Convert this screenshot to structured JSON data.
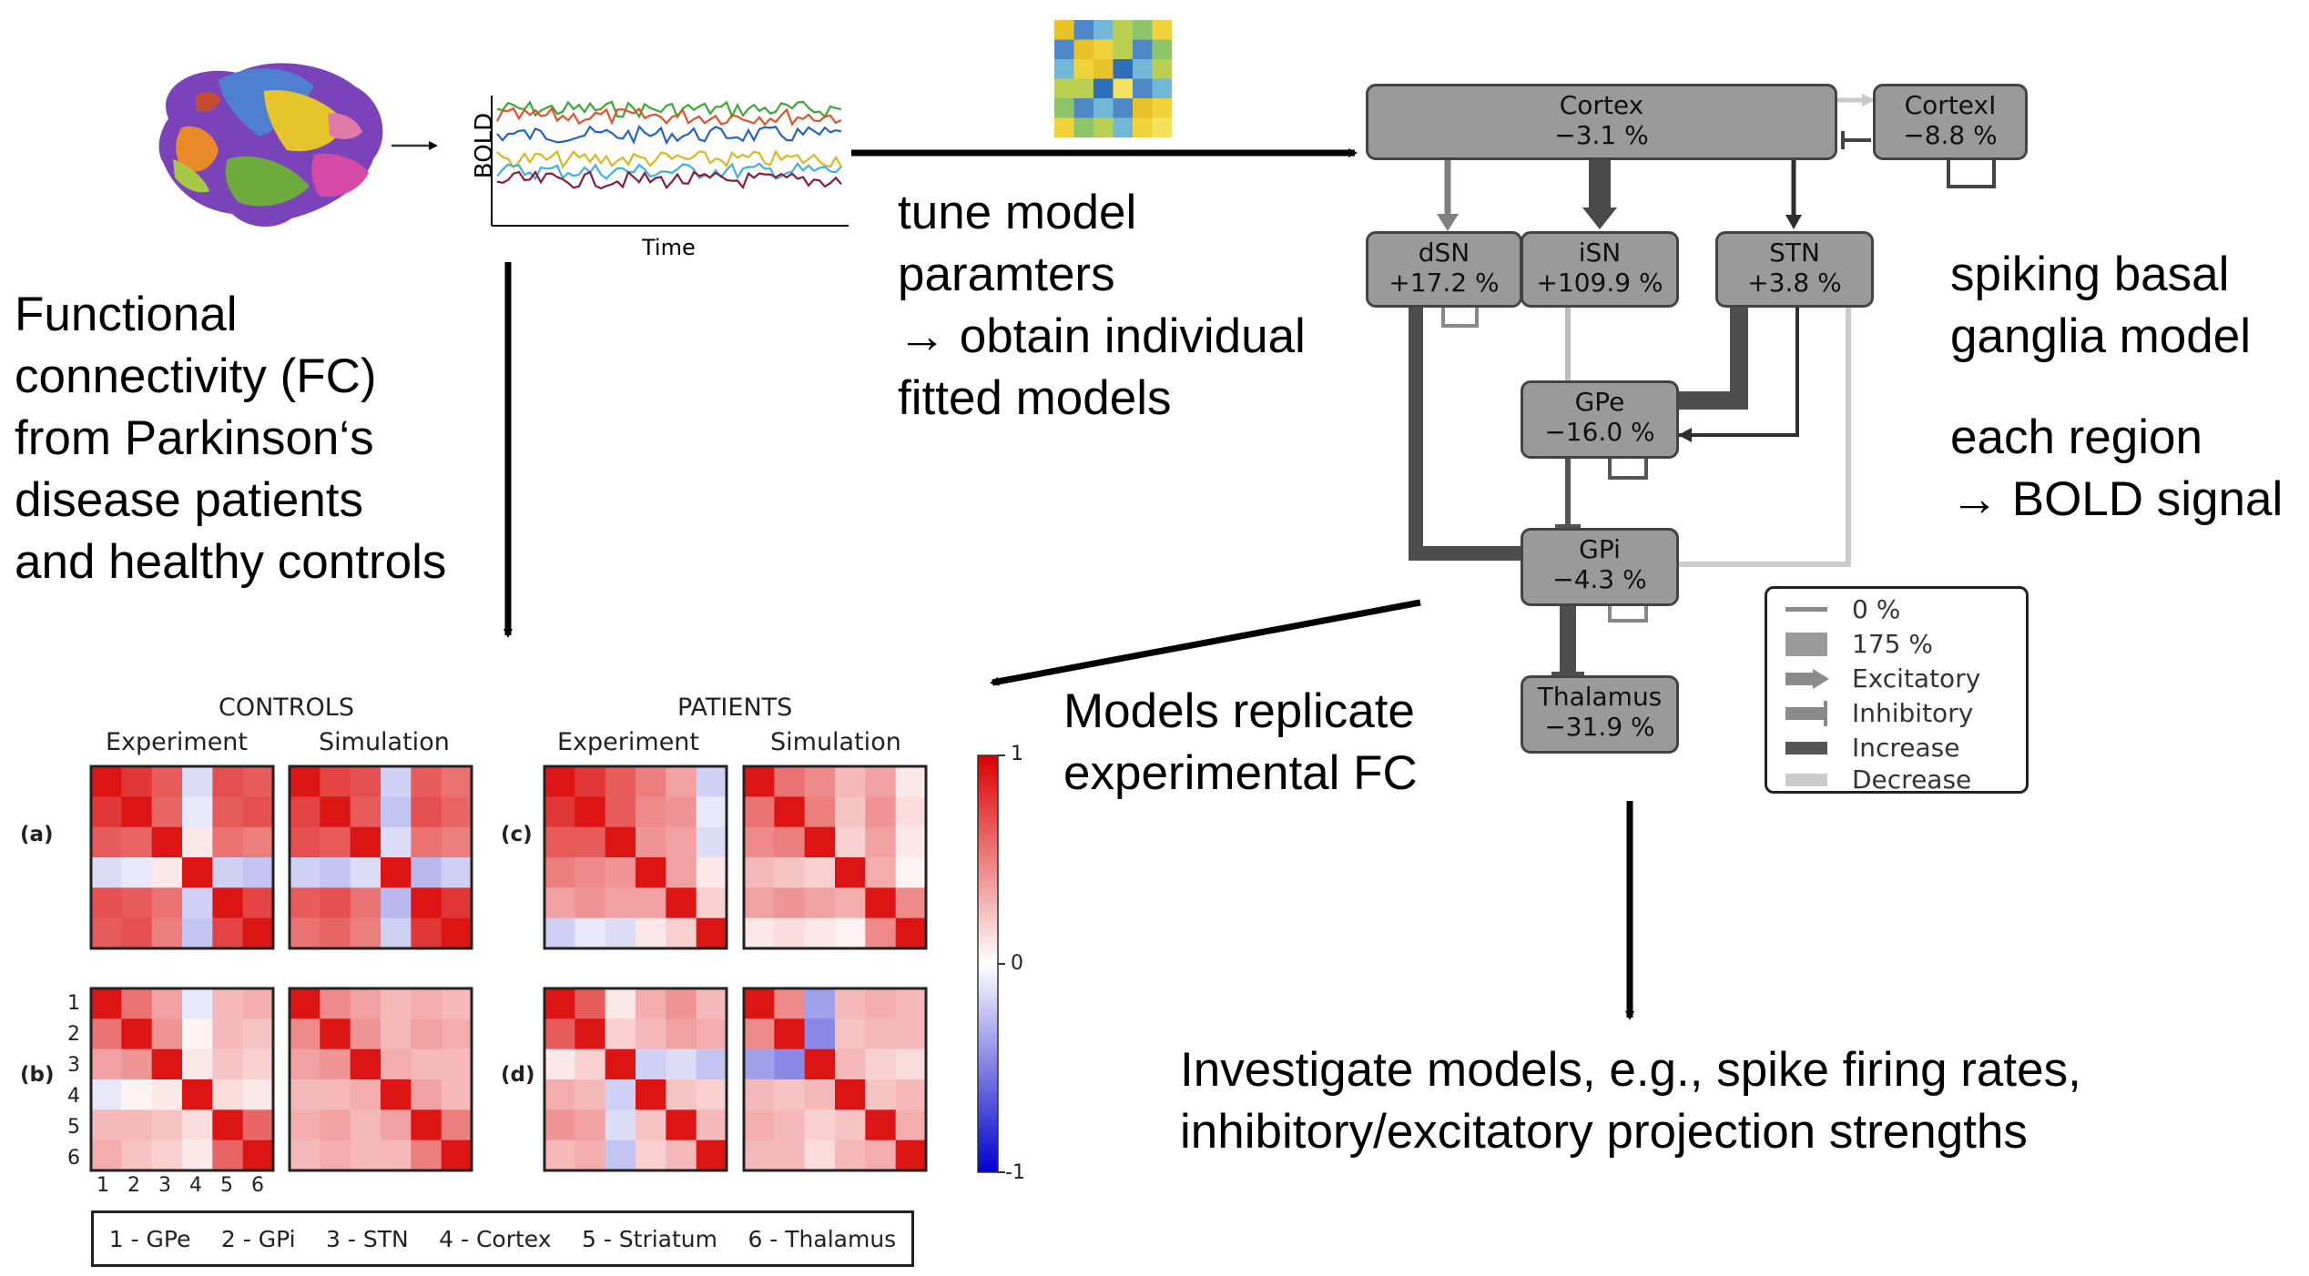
{
  "left_text": {
    "lines": [
      "Functional",
      "connectivity (FC)",
      "from Parkinson‘s",
      "disease patients",
      "and healthy controls"
    ]
  },
  "tune_text": {
    "lines": [
      "tune model",
      "paramters",
      "→ obtain individual",
      "fitted models"
    ]
  },
  "model_text": {
    "lines": [
      "spiking basal",
      "ganglia model"
    ]
  },
  "region_text": {
    "lines": [
      "each region",
      "→ BOLD signal"
    ]
  },
  "replicate_text": {
    "lines": [
      "Models replicate",
      "experimental  FC"
    ]
  },
  "investigate_text": {
    "lines": [
      "Investigate models, e.g., spike firing rates,",
      "inhibitory/excitatory projection strengths"
    ]
  },
  "timeseries": {
    "ylabel": "BOLD",
    "xlabel": "Time",
    "series_colors": [
      "#3aa832",
      "#1f62c8",
      "#e5502a",
      "#e0b41c",
      "#3ab0e6",
      "#8c1a3c"
    ]
  },
  "network": {
    "nodes": [
      {
        "id": "cortex",
        "name": "Cortex",
        "value": "−3.1 %"
      },
      {
        "id": "cortexi",
        "name": "CortexI",
        "value": "−8.8 %"
      },
      {
        "id": "dsn",
        "name": "dSN",
        "value": "+17.2 %"
      },
      {
        "id": "isn",
        "name": "iSN",
        "value": "+109.9 %"
      },
      {
        "id": "stn",
        "name": "STN",
        "value": "+3.8 %"
      },
      {
        "id": "gpe",
        "name": "GPe",
        "value": "−16.0 %"
      },
      {
        "id": "gpi",
        "name": "GPi",
        "value": "−4.3 %"
      },
      {
        "id": "thalamus",
        "name": "Thalamus",
        "value": "−31.9 %"
      }
    ],
    "legend": [
      "0 %",
      "175 %",
      "Excitatory",
      "Inhibitory",
      "Increase",
      "Decrease"
    ],
    "colors": {
      "node_fill": "#9a9a9a",
      "increase": "#555555",
      "decrease": "#cccccc",
      "neutral": "#8a8a8a"
    }
  },
  "fc_figure": {
    "group_titles": [
      "CONTROLS",
      "PATIENTS"
    ],
    "column_titles": [
      "Experiment",
      "Simulation",
      "Experiment",
      "Simulation"
    ],
    "panel_labels": [
      "(a)",
      "(b)",
      "(c)",
      "(d)"
    ],
    "axis_ticks": [
      "1",
      "2",
      "3",
      "4",
      "5",
      "6"
    ],
    "colorbar_ticks": [
      "1",
      "0",
      "-1"
    ],
    "key": [
      "1 - GPe",
      "2 - GPi",
      "3 - STN",
      "4 - Cortex",
      "5 - Striatum",
      "6 - Thalamus"
    ]
  },
  "chart_data": [
    {
      "type": "heatmap",
      "title": "CONTROLS Experiment (a)",
      "vmin": -1,
      "vmax": 1,
      "x": [
        "1",
        "2",
        "3",
        "4",
        "5",
        "6"
      ],
      "y": [
        "1",
        "2",
        "3",
        "4",
        "5",
        "6"
      ],
      "values": [
        [
          1,
          0.85,
          0.7,
          -0.15,
          0.75,
          0.7
        ],
        [
          0.85,
          1,
          0.65,
          -0.1,
          0.7,
          0.75
        ],
        [
          0.7,
          0.65,
          1,
          0.1,
          0.6,
          0.55
        ],
        [
          -0.15,
          -0.1,
          0.1,
          1,
          -0.2,
          -0.25
        ],
        [
          0.75,
          0.7,
          0.6,
          -0.2,
          1,
          0.8
        ],
        [
          0.7,
          0.75,
          0.55,
          -0.25,
          0.8,
          1
        ]
      ]
    },
    {
      "type": "heatmap",
      "title": "CONTROLS Simulation (a)",
      "vmin": -1,
      "vmax": 1,
      "x": [
        "1",
        "2",
        "3",
        "4",
        "5",
        "6"
      ],
      "y": [
        "1",
        "2",
        "3",
        "4",
        "5",
        "6"
      ],
      "values": [
        [
          1,
          0.8,
          0.75,
          -0.2,
          0.7,
          0.6
        ],
        [
          0.8,
          1,
          0.7,
          -0.25,
          0.75,
          0.65
        ],
        [
          0.75,
          0.7,
          1,
          -0.15,
          0.6,
          0.55
        ],
        [
          -0.2,
          -0.25,
          -0.15,
          1,
          -0.3,
          -0.2
        ],
        [
          0.7,
          0.75,
          0.6,
          -0.3,
          1,
          0.85
        ],
        [
          0.6,
          0.65,
          0.55,
          -0.2,
          0.85,
          1
        ]
      ]
    },
    {
      "type": "heatmap",
      "title": "CONTROLS Experiment (b)",
      "vmin": -1,
      "vmax": 1,
      "x": [
        "1",
        "2",
        "3",
        "4",
        "5",
        "6"
      ],
      "y": [
        "1",
        "2",
        "3",
        "4",
        "5",
        "6"
      ],
      "values": [
        [
          1,
          0.6,
          0.4,
          -0.1,
          0.3,
          0.35
        ],
        [
          0.6,
          1,
          0.45,
          0.05,
          0.3,
          0.25
        ],
        [
          0.4,
          0.45,
          1,
          0.1,
          0.25,
          0.2
        ],
        [
          -0.1,
          0.05,
          0.1,
          1,
          0.15,
          0.1
        ],
        [
          0.3,
          0.3,
          0.25,
          0.15,
          1,
          0.65
        ],
        [
          0.35,
          0.25,
          0.2,
          0.1,
          0.65,
          1
        ]
      ]
    },
    {
      "type": "heatmap",
      "title": "CONTROLS Simulation (b)",
      "vmin": -1,
      "vmax": 1,
      "x": [
        "1",
        "2",
        "3",
        "4",
        "5",
        "6"
      ],
      "y": [
        "1",
        "2",
        "3",
        "4",
        "5",
        "6"
      ],
      "values": [
        [
          1,
          0.5,
          0.4,
          0.3,
          0.35,
          0.3
        ],
        [
          0.5,
          1,
          0.45,
          0.3,
          0.4,
          0.35
        ],
        [
          0.4,
          0.45,
          1,
          0.35,
          0.3,
          0.3
        ],
        [
          0.3,
          0.3,
          0.35,
          1,
          0.4,
          0.3
        ],
        [
          0.35,
          0.4,
          0.3,
          0.4,
          1,
          0.55
        ],
        [
          0.3,
          0.35,
          0.3,
          0.3,
          0.55,
          1
        ]
      ]
    },
    {
      "type": "heatmap",
      "title": "PATIENTS Experiment (c)",
      "vmin": -1,
      "vmax": 1,
      "x": [
        "1",
        "2",
        "3",
        "4",
        "5",
        "6"
      ],
      "y": [
        "1",
        "2",
        "3",
        "4",
        "5",
        "6"
      ],
      "values": [
        [
          1,
          0.85,
          0.7,
          0.55,
          0.4,
          -0.2
        ],
        [
          0.85,
          1,
          0.7,
          0.5,
          0.45,
          -0.1
        ],
        [
          0.7,
          0.7,
          1,
          0.45,
          0.4,
          -0.15
        ],
        [
          0.55,
          0.5,
          0.45,
          1,
          0.4,
          0.1
        ],
        [
          0.4,
          0.45,
          0.4,
          0.4,
          1,
          0.2
        ],
        [
          -0.2,
          -0.1,
          -0.15,
          0.1,
          0.2,
          1
        ]
      ]
    },
    {
      "type": "heatmap",
      "title": "PATIENTS Simulation (c)",
      "vmin": -1,
      "vmax": 1,
      "x": [
        "1",
        "2",
        "3",
        "4",
        "5",
        "6"
      ],
      "y": [
        "1",
        "2",
        "3",
        "4",
        "5",
        "6"
      ],
      "values": [
        [
          1,
          0.6,
          0.5,
          0.3,
          0.4,
          0.1
        ],
        [
          0.6,
          1,
          0.55,
          0.25,
          0.45,
          0.15
        ],
        [
          0.5,
          0.55,
          1,
          0.2,
          0.4,
          0.1
        ],
        [
          0.3,
          0.25,
          0.2,
          1,
          0.35,
          0.05
        ],
        [
          0.4,
          0.45,
          0.4,
          0.35,
          1,
          0.5
        ],
        [
          0.1,
          0.15,
          0.1,
          0.05,
          0.5,
          1
        ]
      ]
    },
    {
      "type": "heatmap",
      "title": "PATIENTS Experiment (d)",
      "vmin": -1,
      "vmax": 1,
      "x": [
        "1",
        "2",
        "3",
        "4",
        "5",
        "6"
      ],
      "y": [
        "1",
        "2",
        "3",
        "4",
        "5",
        "6"
      ],
      "values": [
        [
          1,
          0.7,
          0.1,
          0.35,
          0.45,
          0.3
        ],
        [
          0.7,
          1,
          0.2,
          0.3,
          0.4,
          0.35
        ],
        [
          0.1,
          0.2,
          1,
          -0.2,
          -0.15,
          -0.25
        ],
        [
          0.35,
          0.3,
          -0.2,
          1,
          0.25,
          0.2
        ],
        [
          0.45,
          0.4,
          -0.15,
          0.25,
          1,
          0.3
        ],
        [
          0.3,
          0.35,
          -0.25,
          0.2,
          0.3,
          1
        ]
      ]
    },
    {
      "type": "heatmap",
      "title": "PATIENTS Simulation (d)",
      "vmin": -1,
      "vmax": 1,
      "x": [
        "1",
        "2",
        "3",
        "4",
        "5",
        "6"
      ],
      "y": [
        "1",
        "2",
        "3",
        "4",
        "5",
        "6"
      ],
      "values": [
        [
          1,
          0.5,
          -0.4,
          0.3,
          0.35,
          0.3
        ],
        [
          0.5,
          1,
          -0.5,
          0.25,
          0.3,
          0.3
        ],
        [
          -0.4,
          -0.5,
          1,
          0.3,
          0.2,
          0.15
        ],
        [
          0.3,
          0.25,
          0.3,
          1,
          0.25,
          0.3
        ],
        [
          0.35,
          0.3,
          0.2,
          0.25,
          1,
          0.35
        ],
        [
          0.3,
          0.3,
          0.15,
          0.3,
          0.35,
          1
        ]
      ]
    }
  ]
}
